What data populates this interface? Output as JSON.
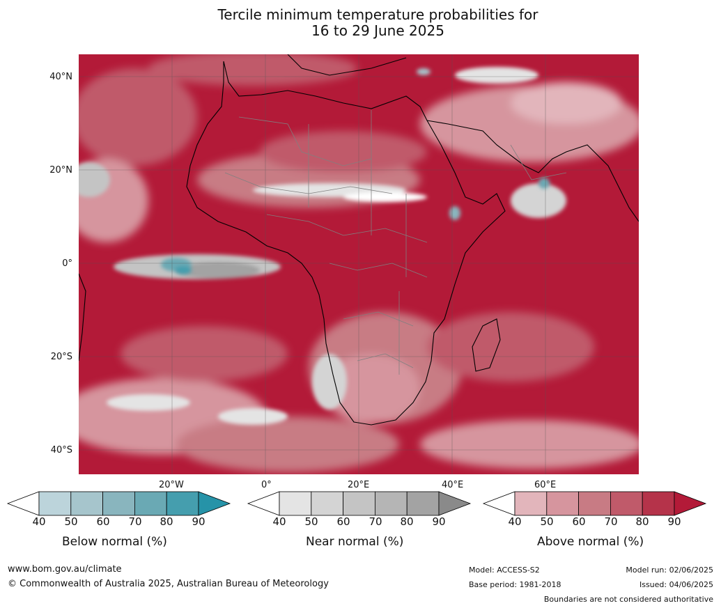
{
  "title_line1": "Tercile minimum temperature probabilities for",
  "title_line2": "16 to 29 June 2025",
  "map": {
    "lat_labels": [
      "40°N",
      "20°N",
      "0°",
      "20°S",
      "40°S"
    ],
    "lon_labels": [
      "20°W",
      "0°",
      "20°E",
      "40°E",
      "60°E"
    ],
    "background_color": "#b31a38"
  },
  "legends": [
    {
      "caption": "Below normal (%)",
      "ticks": [
        "40",
        "50",
        "60",
        "70",
        "80",
        "90"
      ],
      "colors": [
        "#ffffff",
        "#bcd4db",
        "#a6c5cc",
        "#89b5be",
        "#6aa9b4",
        "#459eae",
        "#2693a8"
      ]
    },
    {
      "caption": "Near normal (%)",
      "ticks": [
        "40",
        "50",
        "60",
        "70",
        "80",
        "90"
      ],
      "colors": [
        "#ffffff",
        "#e4e4e4",
        "#d4d4d4",
        "#c4c4c4",
        "#b5b5b5",
        "#a3a3a3",
        "#8a8a8a"
      ]
    },
    {
      "caption": "Above normal (%)",
      "ticks": [
        "40",
        "50",
        "60",
        "70",
        "80",
        "90"
      ],
      "colors": [
        "#ffffff",
        "#e2b5bb",
        "#d6959e",
        "#c87b84",
        "#c05a6a",
        "#b5334a",
        "#b31a38"
      ]
    }
  ],
  "footer": {
    "website": "www.bom.gov.au/climate",
    "copyright": "© Commonwealth of Australia 2025, Australian Bureau of Meteorology",
    "model": "Model: ACCESS-S2",
    "base_period": "Base period: 1981-2018",
    "model_run": "Model run: 02/06/2025",
    "issued": "Issued: 04/06/2025",
    "disclaimer": "Boundaries are not considered authoritative"
  }
}
